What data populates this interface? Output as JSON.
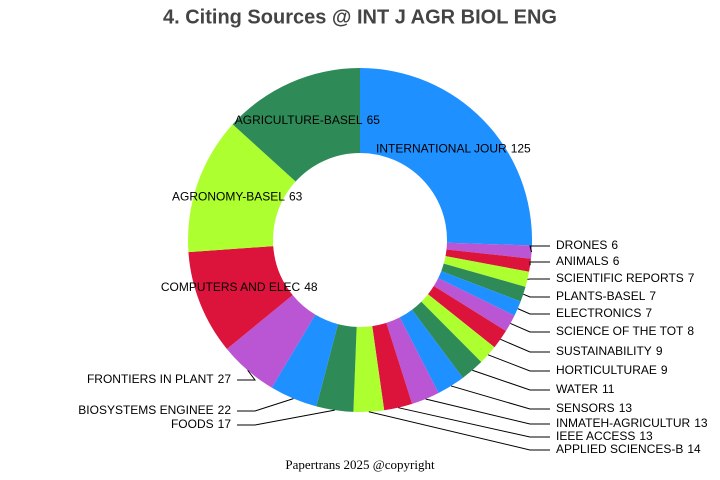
{
  "chart_data": {
    "type": "donut",
    "title": "4. Citing Sources @ INT J AGR BIOL ENG",
    "categories": [
      "INTERNATIONAL JOUR",
      "DRONES",
      "ANIMALS",
      "SCIENTIFIC REPORTS",
      "PLANTS-BASEL",
      "ELECTRONICS",
      "SCIENCE OF THE TOT",
      "SUSTAINABILITY",
      "HORTICULTURAE",
      "WATER",
      "SENSORS",
      "INMATEH-AGRICULTUR",
      "IEEE ACCESS",
      "APPLIED SCIENCES-B",
      "FOODS",
      "BIOSYSTEMS ENGINEE",
      "FRONTIERS IN PLANT",
      "COMPUTERS AND ELEC",
      "AGRONOMY-BASEL",
      "AGRICULTURE-BASEL"
    ],
    "values": [
      125,
      6,
      6,
      7,
      7,
      7,
      8,
      9,
      9,
      11,
      13,
      13,
      13,
      14,
      17,
      22,
      27,
      48,
      63,
      65
    ],
    "colors": [
      "#1e90ff",
      "#ba55d3",
      "#dc143c",
      "#adff2f",
      "#2e8b57",
      "#1e90ff",
      "#ba55d3",
      "#dc143c",
      "#adff2f",
      "#2e8b57",
      "#1e90ff",
      "#ba55d3",
      "#dc143c",
      "#adff2f",
      "#2e8b57",
      "#1e90ff",
      "#ba55d3",
      "#dc143c",
      "#adff2f",
      "#2e8b57"
    ],
    "footer": "Papertrans 2025 @copyright"
  }
}
